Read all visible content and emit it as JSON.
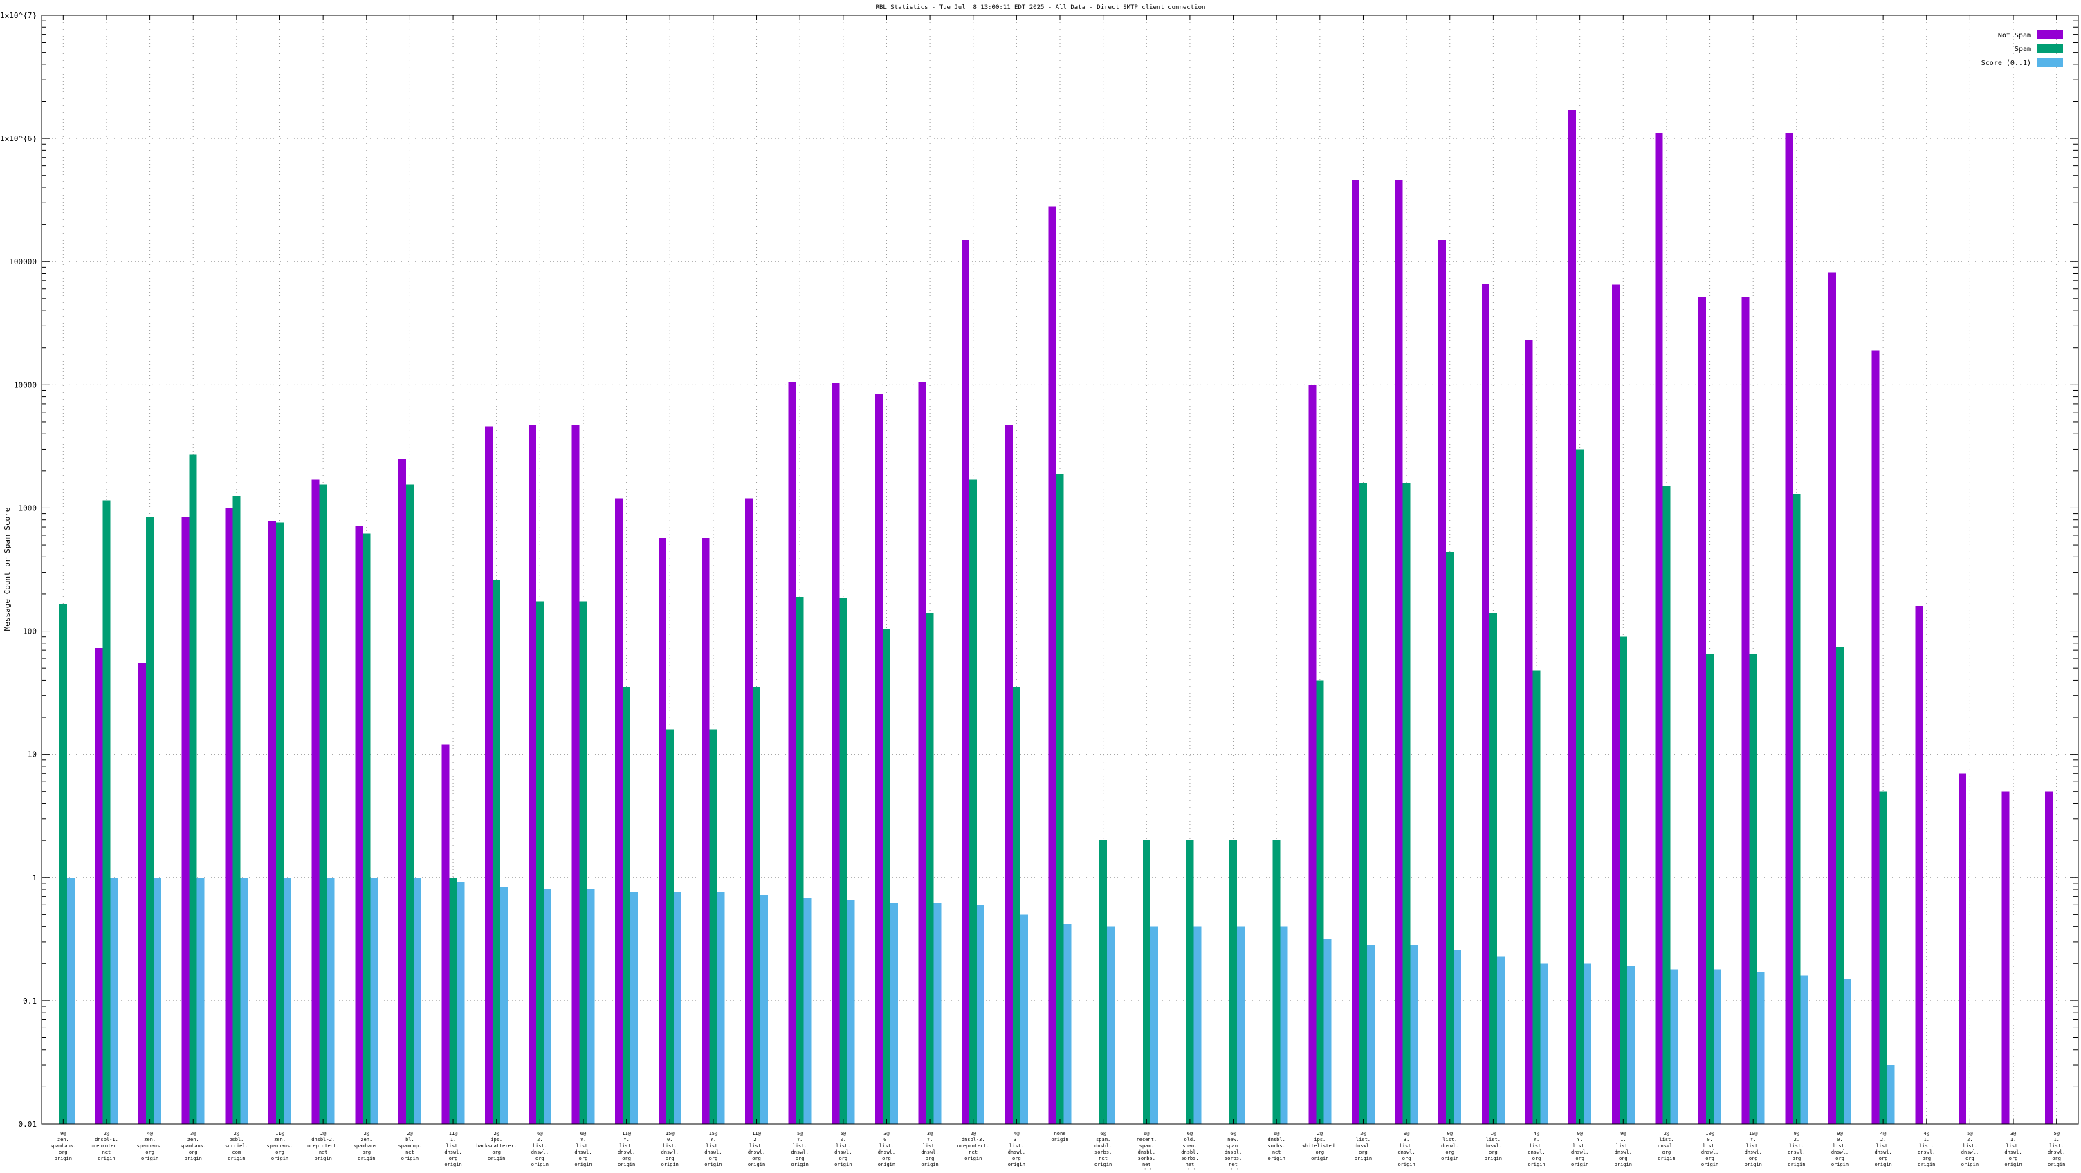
{
  "title": "RBL Statistics - Tue Jul  8 13:00:11 EDT 2025 - All Data - Direct SMTP client connection",
  "y_axis": {
    "label": "Message Count or Spam Score",
    "tick_labels": [
      "1x10^{7}",
      "1x10^{6}",
      "100000",
      "10000",
      "1000",
      "100",
      "10",
      "1",
      "0.1",
      "0.01"
    ]
  },
  "legend": {
    "position": "top-right",
    "entries": [
      {
        "label": "Not Spam",
        "color": "#9400d3"
      },
      {
        "label": "Spam",
        "color": "#009e73"
      },
      {
        "label": "Score (0..1)",
        "color": "#56b4e9"
      }
    ]
  },
  "chart_data": {
    "type": "bar",
    "log_scale_y": true,
    "y_range": [
      0.01,
      10000000
    ],
    "grid": true,
    "xlabel": "",
    "ylabel": "Message Count or Spam Score",
    "categories": [
      [
        "9@",
        "zen.",
        "spamhaus.",
        "org",
        "origin"
      ],
      [
        "2@",
        "dnsbl-1.",
        "uceprotect.",
        "net",
        "origin"
      ],
      [
        "4@",
        "zen.",
        "spamhaus.",
        "org",
        "origin"
      ],
      [
        "3@",
        "zen.",
        "spamhaus.",
        "org",
        "origin"
      ],
      [
        "2@",
        "psbl.",
        "surriel.",
        "com",
        "origin"
      ],
      [
        "11@",
        "zen.",
        "spamhaus.",
        "org",
        "origin"
      ],
      [
        "2@",
        "dnsbl-2.",
        "uceprotect.",
        "net",
        "origin"
      ],
      [
        "2@",
        "zen.",
        "spamhaus.",
        "org",
        "origin"
      ],
      [
        "2@",
        "bl.",
        "spamcop.",
        "net",
        "origin"
      ],
      [
        "11@",
        "1.",
        "list.",
        "dnswl.",
        "org",
        "origin"
      ],
      [
        "2@",
        "ips.",
        "backscatterer.",
        "org",
        "origin"
      ],
      [
        "6@",
        "2.",
        "list.",
        "dnswl.",
        "org",
        "origin"
      ],
      [
        "6@",
        "Y.",
        "list.",
        "dnswl.",
        "org",
        "origin"
      ],
      [
        "11@",
        "Y.",
        "list.",
        "dnswl.",
        "org",
        "origin"
      ],
      [
        "15@",
        "0.",
        "list.",
        "dnswl.",
        "org",
        "origin"
      ],
      [
        "15@",
        "Y.",
        "list.",
        "dnswl.",
        "org",
        "origin"
      ],
      [
        "11@",
        "2.",
        "list.",
        "dnswl.",
        "org",
        "origin"
      ],
      [
        "5@",
        "Y.",
        "list.",
        "dnswl.",
        "org",
        "origin"
      ],
      [
        "5@",
        "0.",
        "list.",
        "dnswl.",
        "org",
        "origin"
      ],
      [
        "3@",
        "0.",
        "list.",
        "dnswl.",
        "org",
        "origin"
      ],
      [
        "3@",
        "Y.",
        "list.",
        "dnswl.",
        "org",
        "origin"
      ],
      [
        "2@",
        "dnsbl-3.",
        "uceprotect.",
        "net",
        "origin"
      ],
      [
        "4@",
        "3.",
        "list.",
        "dnswl.",
        "org",
        "origin"
      ],
      [
        "none",
        "origin"
      ],
      [
        "6@",
        "spam.",
        "dnsbl.",
        "sorbs.",
        "net",
        "origin"
      ],
      [
        "6@",
        "recent.",
        "spam.",
        "dnsbl.",
        "sorbs.",
        "net",
        "origin"
      ],
      [
        "6@",
        "old.",
        "spam.",
        "dnsbl.",
        "sorbs.",
        "net",
        "origin"
      ],
      [
        "6@",
        "new.",
        "spam.",
        "dnsbl.",
        "sorbs.",
        "net",
        "origin"
      ],
      [
        "6@",
        "dnsbl.",
        "sorbs.",
        "net",
        "origin"
      ],
      [
        "2@",
        "ips.",
        "whitelisted.",
        "org",
        "origin"
      ],
      [
        "3@",
        "list.",
        "dnswl.",
        "org",
        "origin"
      ],
      [
        "9@",
        "3.",
        "list.",
        "dnswl.",
        "org",
        "origin"
      ],
      [
        "0@",
        "list.",
        "dnswl.",
        "org",
        "origin"
      ],
      [
        "1@",
        "list.",
        "dnswl.",
        "org",
        "origin"
      ],
      [
        "4@",
        "Y.",
        "list.",
        "dnswl.",
        "org",
        "origin"
      ],
      [
        "9@",
        "Y.",
        "list.",
        "dnswl.",
        "org",
        "origin"
      ],
      [
        "9@",
        "1.",
        "list.",
        "dnswl.",
        "org",
        "origin"
      ],
      [
        "2@",
        "list.",
        "dnswl.",
        "org",
        "origin"
      ],
      [
        "10@",
        "0.",
        "list.",
        "dnswl.",
        "org",
        "origin"
      ],
      [
        "10@",
        "Y.",
        "list.",
        "dnswl.",
        "org",
        "origin"
      ],
      [
        "9@",
        "2.",
        "list.",
        "dnswl.",
        "org",
        "origin"
      ],
      [
        "9@",
        "0.",
        "list.",
        "dnswl.",
        "org",
        "origin"
      ],
      [
        "4@",
        "2.",
        "list.",
        "dnswl.",
        "org",
        "origin"
      ],
      [
        "4@",
        "1.",
        "list.",
        "dnswl.",
        "org",
        "origin"
      ],
      [
        "5@",
        "2.",
        "list.",
        "dnswl.",
        "org",
        "origin"
      ],
      [
        "3@",
        "1.",
        "list.",
        "dnswl.",
        "org",
        "origin"
      ],
      [
        "5@",
        "1.",
        "list.",
        "dnswl.",
        "org",
        "origin"
      ]
    ],
    "series": [
      {
        "name": "Not Spam",
        "color": "#9400d3",
        "values": [
          0,
          73,
          55,
          850,
          1000,
          780,
          1700,
          720,
          2500,
          12,
          4600,
          4700,
          4700,
          1200,
          570,
          570,
          1200,
          10500,
          10300,
          8500,
          10500,
          150000,
          4700,
          280000,
          0,
          0,
          0,
          0,
          0,
          10000,
          460000,
          460000,
          150000,
          66000,
          23000,
          1700000,
          65000,
          1100000,
          52000,
          52000,
          1100000,
          82000,
          19000,
          160,
          7,
          5,
          5
        ]
      },
      {
        "name": "Spam",
        "color": "#009e73",
        "values": [
          165,
          1150,
          850,
          2700,
          1250,
          760,
          1550,
          620,
          1550,
          1,
          260,
          175,
          175,
          35,
          16,
          16,
          35,
          190,
          185,
          105,
          140,
          1700,
          35,
          1900,
          2,
          2,
          2,
          2,
          2,
          40,
          1600,
          1600,
          440,
          140,
          48,
          3000,
          90,
          1500,
          65,
          65,
          1300,
          75,
          5,
          0,
          0,
          0,
          0
        ]
      },
      {
        "name": "Score (0..1)",
        "color": "#56b4e9",
        "values": [
          1,
          1,
          1,
          1,
          1,
          1,
          1,
          1,
          1,
          0.92,
          0.84,
          0.81,
          0.81,
          0.76,
          0.76,
          0.76,
          0.72,
          0.68,
          0.66,
          0.62,
          0.62,
          0.6,
          0.5,
          0.42,
          0.4,
          0.4,
          0.4,
          0.4,
          0.4,
          0.32,
          0.28,
          0.28,
          0.26,
          0.23,
          0.2,
          0.2,
          0.19,
          0.18,
          0.18,
          0.17,
          0.16,
          0.15,
          0.03,
          0,
          0,
          0,
          0
        ]
      }
    ]
  }
}
